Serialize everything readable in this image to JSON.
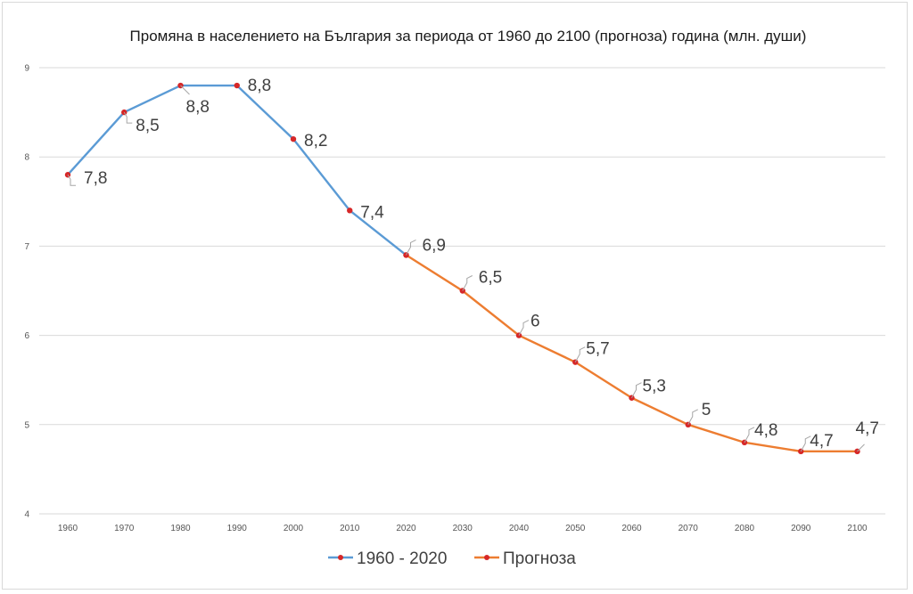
{
  "chart_data": {
    "type": "line",
    "title": "Промяна в населението на България за периода от 1960 до 2100 (прогноза) година (млн. души)",
    "x": [
      "1960",
      "1970",
      "1980",
      "1990",
      "2000",
      "2010",
      "2020",
      "2030",
      "2040",
      "2050",
      "2060",
      "2070",
      "2080",
      "2090",
      "2100"
    ],
    "ylim": [
      4,
      9
    ],
    "yticks": [
      "4",
      "5",
      "6",
      "7",
      "8",
      "9"
    ],
    "grid": true,
    "legend_position": "bottom",
    "series": [
      {
        "name": "1960 - 2020",
        "color": "#5b9bd5",
        "marker_color": "#d62728",
        "x": [
          "1960",
          "1970",
          "1980",
          "1990",
          "2000",
          "2010",
          "2020"
        ],
        "values": [
          7.8,
          8.5,
          8.8,
          8.8,
          8.2,
          7.4,
          6.9
        ],
        "labels": [
          "7,8",
          "8,5",
          "8,8",
          "8,8",
          "8,2",
          "7,4",
          "6,9"
        ]
      },
      {
        "name": "Прогноза",
        "color": "#ed7d31",
        "marker_color": "#d62728",
        "x": [
          "2020",
          "2030",
          "2040",
          "2050",
          "2060",
          "2070",
          "2080",
          "2090",
          "2100"
        ],
        "values": [
          6.9,
          6.5,
          6.0,
          5.7,
          5.3,
          5.0,
          4.8,
          4.7,
          4.7
        ],
        "labels": [
          "6,9",
          "6,5",
          "6",
          "5,7",
          "5,3",
          "5",
          "4,8",
          "4,7",
          "4,7"
        ]
      }
    ]
  }
}
